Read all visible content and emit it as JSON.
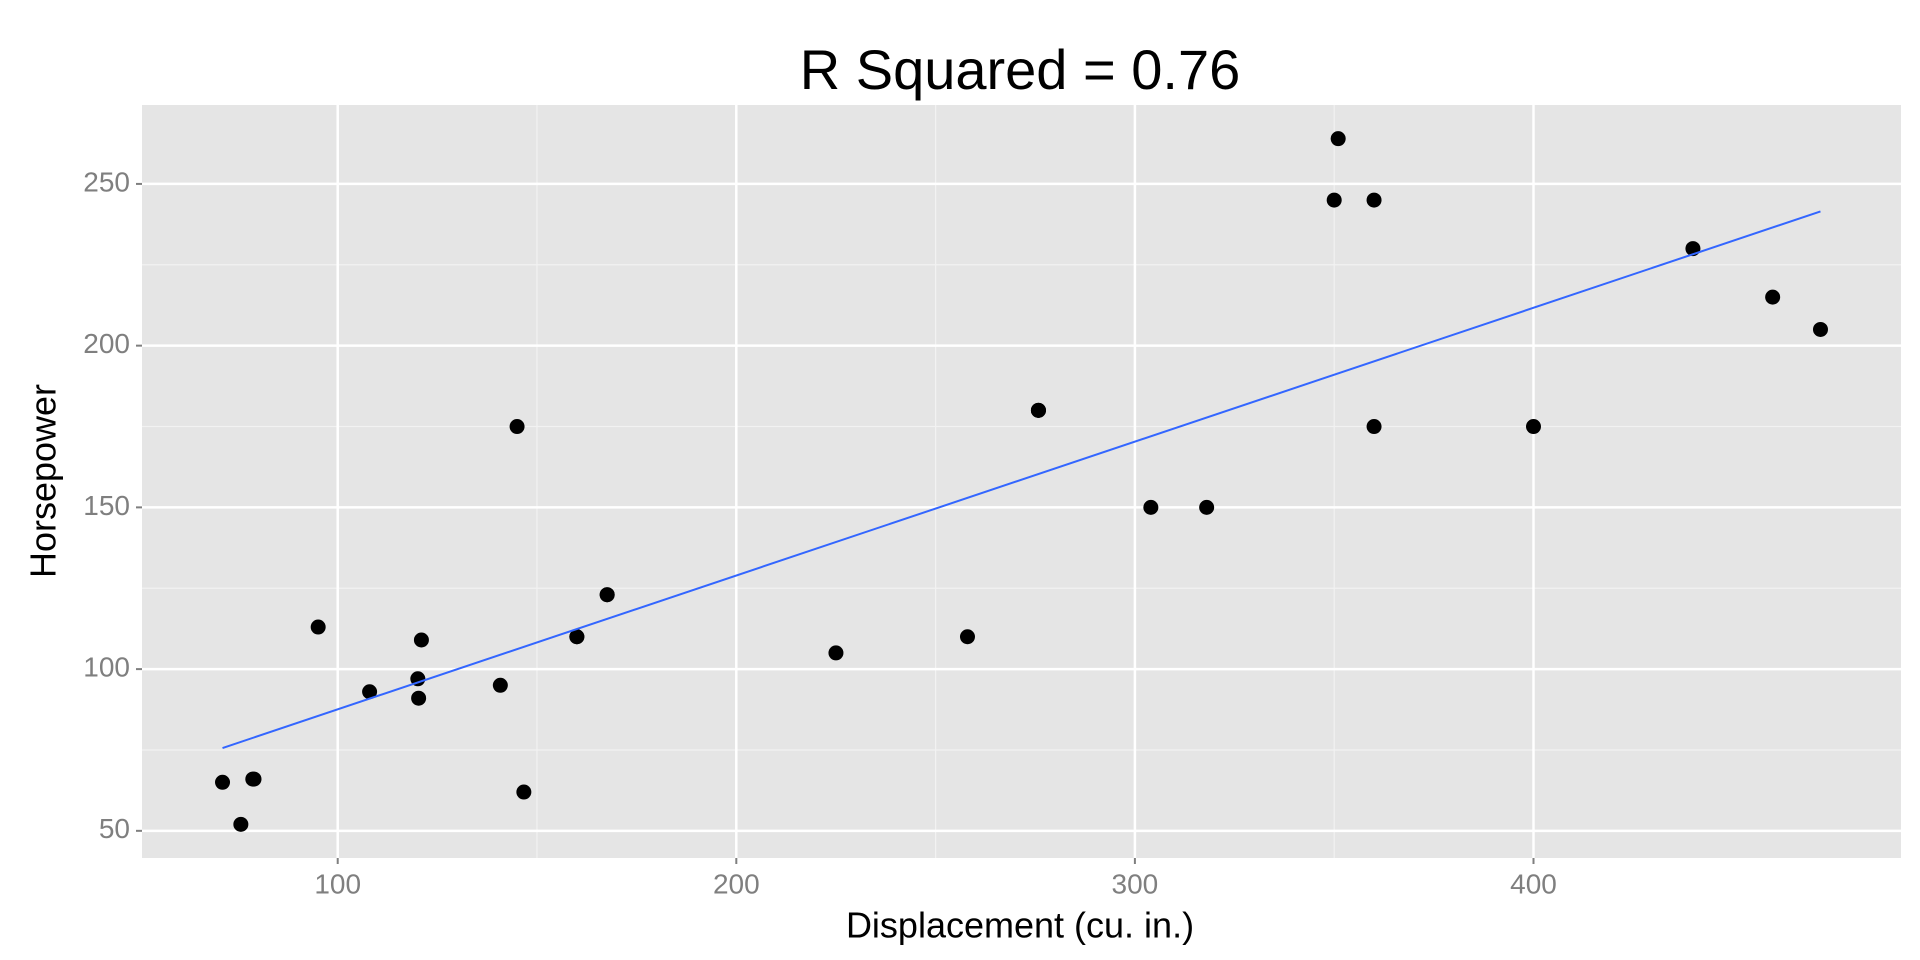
{
  "chart_data": {
    "type": "scatter",
    "title": "R Squared = 0.76",
    "x_label": "Displacement (cu. in.)",
    "y_label": "Horsepower",
    "xlim": [
      50.9,
      492.2
    ],
    "xticks": [
      100,
      200,
      300,
      400
    ],
    "ylim": [
      41.6,
      274.4
    ],
    "yticks": [
      50,
      100,
      150,
      200,
      250
    ],
    "grid": true,
    "series": [
      {
        "color": "#000000",
        "x": [
          160,
          160,
          108,
          258,
          360,
          225,
          360,
          146.7,
          140.8,
          167.6,
          167.6,
          275.8,
          275.8,
          275.8,
          472,
          460,
          440,
          78.7,
          75.7,
          71.1,
          120.1,
          318,
          304,
          350,
          400,
          79,
          120.3,
          95.1,
          351,
          145,
          121
        ],
        "values": [
          110,
          110,
          93,
          110,
          175,
          105,
          245,
          62,
          95,
          123,
          123,
          180,
          180,
          180,
          205,
          215,
          230,
          66,
          52,
          65,
          97,
          150,
          150,
          245,
          175,
          66,
          91,
          113,
          264,
          175,
          109
        ]
      },
      {
        "type": "line",
        "color": "#3366ff",
        "x": [
          71.1,
          472
        ],
        "values": [
          75.6,
          241.5
        ]
      }
    ]
  }
}
